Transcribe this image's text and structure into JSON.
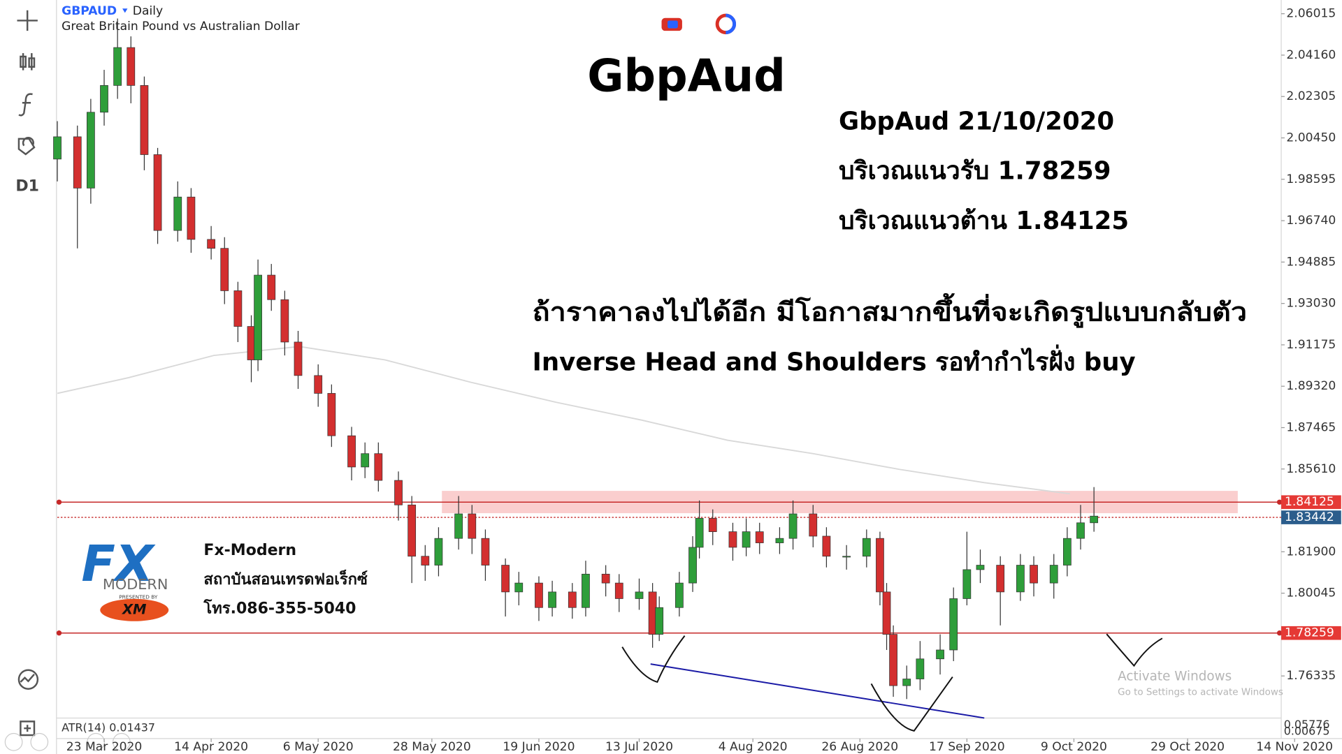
{
  "header": {
    "symbol": "GBPAUD",
    "timeframe": "Daily",
    "description": "Great Britain Pound vs Australian Dollar"
  },
  "toolbar": {
    "timeframe": "D1"
  },
  "annotations": {
    "title": "GbpAud",
    "date_line": "GbpAud 21/10/2020",
    "support_line": "บริเวณแนวรับ 1.78259",
    "resistance_line": "บริเวณแนวต้าน 1.84125",
    "pattern_line": "ถ้าราคาลงไปได้อีก มีโอกาสมากขึ้นที่จะเกิดรูปแบบกลับตัว",
    "action_line": "Inverse Head and Shoulders รอทำกำไรฝั่ง buy"
  },
  "logo": {
    "mark": "FX",
    "brand": "MODERN",
    "presented": "PRESENTED BY",
    "partner": "XM",
    "name": "Fx-Modern",
    "school": "สถาบันสอนเทรดฟอเร็กซ์",
    "phone": "โทร.086-355-5040"
  },
  "indicator": {
    "label": "ATR(14) 0.01437",
    "axis_labels": [
      "0.05776",
      "0.00675"
    ]
  },
  "watermark": {
    "title": "Activate Windows",
    "subtitle": "Go to Settings to activate Windows"
  },
  "chart_data": {
    "type": "candlestick",
    "xlim": [
      -7,
      176
    ],
    "ylim": [
      1.7445,
      2.0663
    ],
    "xticks": [
      {
        "value": 0,
        "label": "23 Mar 2020"
      },
      {
        "value": 16,
        "label": "14 Apr 2020"
      },
      {
        "value": 32,
        "label": "6 May 2020"
      },
      {
        "value": 49,
        "label": "28 May 2020"
      },
      {
        "value": 65,
        "label": "19 Jun 2020"
      },
      {
        "value": 80,
        "label": "13 Jul 2020"
      },
      {
        "value": 97,
        "label": "4 Aug 2020"
      },
      {
        "value": 113,
        "label": "26 Aug 2020"
      },
      {
        "value": 129,
        "label": "17 Sep 2020"
      },
      {
        "value": 145,
        "label": "9 Oct 2020"
      },
      {
        "value": 162,
        "label": "29 Oct 2020"
      },
      {
        "value": 178,
        "label": "14 Nov 2020"
      }
    ],
    "yticks": [
      2.06015,
      {
        "value": 2.0416,
        "label": "2.04160"
      },
      2.02305,
      {
        "value": 2.0045,
        "label": "2.00450"
      },
      1.98595,
      {
        "value": 1.9674,
        "label": "1.96740"
      },
      1.94885,
      {
        "value": 1.9303,
        "label": "1.93030"
      },
      1.91175,
      {
        "value": 1.8932,
        "label": "1.89320"
      },
      1.87465,
      {
        "value": 1.8561,
        "label": "1.85610"
      },
      {
        "value": 1.819,
        "label": "1.81900"
      },
      1.80045,
      1.76335
    ],
    "grid": false,
    "up_color": "#2e9e3a",
    "down_color": "#d32f2f",
    "x": [
      -7,
      -4,
      -2,
      0,
      2,
      4,
      6,
      8,
      11,
      13,
      16,
      18,
      20,
      22,
      23,
      25,
      27,
      29,
      32,
      34,
      37,
      39,
      41,
      44,
      46,
      48,
      50,
      53,
      55,
      57,
      60,
      62,
      65,
      67,
      70,
      72,
      75,
      77,
      80,
      82,
      83,
      86,
      88,
      89,
      91,
      94,
      96,
      98,
      101,
      103,
      106,
      108,
      111,
      114,
      116,
      117,
      118,
      120,
      122,
      125,
      127,
      129,
      131,
      134,
      137,
      139,
      142,
      144,
      146,
      148
    ],
    "open": [
      1.995,
      2.005,
      1.982,
      2.016,
      2.028,
      2.045,
      2.028,
      1.997,
      1.963,
      1.978,
      1.959,
      1.955,
      1.936,
      1.92,
      1.905,
      1.943,
      1.932,
      1.913,
      1.898,
      1.89,
      1.871,
      1.857,
      1.863,
      1.851,
      1.84,
      1.817,
      1.813,
      1.825,
      1.836,
      1.825,
      1.813,
      1.801,
      1.805,
      1.794,
      1.801,
      1.794,
      1.809,
      1.805,
      1.798,
      1.801,
      1.782,
      1.794,
      1.805,
      1.821,
      1.834,
      1.828,
      1.821,
      1.828,
      1.823,
      1.825,
      1.836,
      1.826,
      1.817,
      1.817,
      1.825,
      1.801,
      1.782,
      1.759,
      1.762,
      1.771,
      1.775,
      1.798,
      1.811,
      1.813,
      1.801,
      1.813,
      1.805,
      1.813,
      1.825,
      1.832
    ],
    "high": [
      2.012,
      2.01,
      2.022,
      2.035,
      2.058,
      2.05,
      2.032,
      2.0,
      1.985,
      1.982,
      1.965,
      1.96,
      1.94,
      1.925,
      1.95,
      1.948,
      1.936,
      1.918,
      1.903,
      1.894,
      1.875,
      1.868,
      1.868,
      1.855,
      1.844,
      1.822,
      1.83,
      1.844,
      1.84,
      1.829,
      1.816,
      1.81,
      1.808,
      1.806,
      1.805,
      1.815,
      1.813,
      1.809,
      1.807,
      1.805,
      1.799,
      1.81,
      1.826,
      1.842,
      1.838,
      1.832,
      1.834,
      1.832,
      1.83,
      1.842,
      1.84,
      1.83,
      1.822,
      1.829,
      1.828,
      1.805,
      1.786,
      1.768,
      1.779,
      1.782,
      1.803,
      1.828,
      1.82,
      1.817,
      1.818,
      1.817,
      1.818,
      1.83,
      1.84,
      1.848
    ],
    "low": [
      1.985,
      1.955,
      1.975,
      2.01,
      2.022,
      2.02,
      1.99,
      1.957,
      1.958,
      1.953,
      1.95,
      1.93,
      1.913,
      1.895,
      1.9,
      1.927,
      1.907,
      1.892,
      1.884,
      1.866,
      1.851,
      1.852,
      1.846,
      1.833,
      1.805,
      1.806,
      1.808,
      1.82,
      1.818,
      1.806,
      1.79,
      1.795,
      1.788,
      1.79,
      1.789,
      1.79,
      1.799,
      1.792,
      1.793,
      1.776,
      1.779,
      1.79,
      1.801,
      1.816,
      1.822,
      1.815,
      1.817,
      1.818,
      1.818,
      1.82,
      1.821,
      1.812,
      1.811,
      1.812,
      1.795,
      1.775,
      1.754,
      1.753,
      1.757,
      1.764,
      1.77,
      1.795,
      1.805,
      1.786,
      1.797,
      1.799,
      1.798,
      1.808,
      1.82,
      1.828
    ],
    "close": [
      2.005,
      1.982,
      2.016,
      2.028,
      2.045,
      2.028,
      1.997,
      1.963,
      1.978,
      1.959,
      1.955,
      1.936,
      1.92,
      1.905,
      1.943,
      1.932,
      1.913,
      1.898,
      1.89,
      1.871,
      1.857,
      1.863,
      1.851,
      1.84,
      1.817,
      1.813,
      1.825,
      1.836,
      1.825,
      1.813,
      1.801,
      1.805,
      1.794,
      1.801,
      1.794,
      1.809,
      1.805,
      1.798,
      1.801,
      1.782,
      1.794,
      1.805,
      1.821,
      1.834,
      1.828,
      1.821,
      1.828,
      1.823,
      1.825,
      1.836,
      1.826,
      1.817,
      1.817,
      1.825,
      1.801,
      1.782,
      1.759,
      1.762,
      1.771,
      1.775,
      1.798,
      1.811,
      1.813,
      1.801,
      1.813,
      1.805,
      1.813,
      1.825,
      1.832,
      1.835
    ],
    "moving_average": {
      "color": "#d8d8d8",
      "x": [
        -7,
        3.6,
        16.4,
        29.2,
        42,
        54.8,
        67.6,
        80.4,
        93.2,
        106,
        118.8,
        131.6,
        144.4
      ],
      "values": [
        1.89,
        1.897,
        1.907,
        1.911,
        1.905,
        1.895,
        1.886,
        1.878,
        1.869,
        1.863,
        1.856,
        1.85,
        1.845
      ]
    },
    "trendline": {
      "color": "#1a1aa6",
      "x": [
        81.7,
        131.6
      ],
      "values": [
        1.7687,
        1.7445
      ]
    },
    "zone": {
      "color": "#f9c6c6",
      "x": [
        50.5,
        169.5
      ],
      "values": [
        1.8363,
        1.8463
      ]
    },
    "levels": [
      {
        "value": 1.84125,
        "color": "#c62828",
        "style": "solid",
        "badge": "#e53935"
      },
      {
        "value": 1.83442,
        "color": "#c62828",
        "style": "dotted",
        "badge": "#2b5d8c"
      },
      {
        "value": 1.78259,
        "color": "#c62828",
        "style": "solid",
        "badge": "#e53935"
      }
    ]
  }
}
